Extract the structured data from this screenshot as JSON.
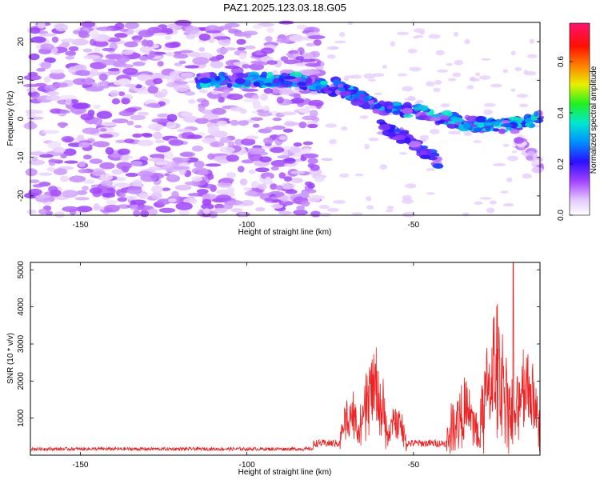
{
  "title": "PAZ1.2025.123.03.18.G05",
  "chart_data": [
    {
      "type": "heatmap",
      "title": "PAZ1.2025.123.03.18.G05",
      "xlabel": "Height of straight line (km)",
      "ylabel": "Frequency (Hz)",
      "xlim": [
        -165,
        -12
      ],
      "ylim": [
        -25,
        25
      ],
      "xticks": [
        "-150",
        "-100",
        "-50"
      ],
      "yticks": [
        "20",
        "10",
        "0",
        "-10",
        "-20"
      ],
      "colorbar": {
        "label": "Normalized spectral amplitude",
        "range": [
          0,
          0.75
        ],
        "ticks": [
          "0.0",
          "0.2",
          "0.4",
          "0.6"
        ],
        "colormap": "white-purple-blue-cyan-green-yellow-red-magenta"
      },
      "features": [
        {
          "name": "noise-band",
          "x_range": [
            -165,
            -78
          ],
          "freq_range": [
            -25,
            25
          ],
          "amplitude": 0.08
        },
        {
          "name": "main-trace",
          "points": [
            [
              -115,
              10
            ],
            [
              -100,
              10
            ],
            [
              -85,
              10
            ],
            [
              -75,
              8
            ],
            [
              -70,
              7
            ],
            [
              -60,
              3
            ],
            [
              -50,
              2
            ],
            [
              -45,
              1
            ],
            [
              -35,
              -1
            ],
            [
              -25,
              -2
            ],
            [
              -18,
              -1
            ],
            [
              -12,
              0
            ]
          ],
          "amplitude": 0.3
        },
        {
          "name": "upper-branch",
          "points": [
            [
              -74,
              9
            ],
            [
              -68,
              6
            ],
            [
              -62,
              4
            ]
          ],
          "amplitude": 0.25
        },
        {
          "name": "lower-branch",
          "points": [
            [
              -60,
              -2
            ],
            [
              -52,
              -5
            ],
            [
              -46,
              -9
            ],
            [
              -42,
              -12
            ]
          ],
          "amplitude": 0.2
        },
        {
          "name": "late-trace-tail",
          "points": [
            [
              -20,
              -4
            ],
            [
              -15,
              -9
            ],
            [
              -12,
              -13
            ]
          ],
          "amplitude": 0.1
        }
      ]
    },
    {
      "type": "line",
      "xlabel": "Height of straight line (km)",
      "ylabel": "SNR (10 * v/v)",
      "xlim": [
        -165,
        -12
      ],
      "ylim": [
        0,
        5200
      ],
      "xticks": [
        "-150",
        "-100",
        "-50"
      ],
      "yticks": [
        "5000",
        "4000",
        "3000",
        "2000",
        "1000"
      ],
      "color": "#ee2222",
      "segments": [
        {
          "x_range": [
            -165,
            -80
          ],
          "baseline": 150,
          "noise": 90
        },
        {
          "x_range": [
            -80,
            -72
          ],
          "baseline": 280,
          "noise": 200
        },
        {
          "x_range": [
            -72,
            -66
          ],
          "peak": 1500,
          "noise": 500
        },
        {
          "x_range": [
            -66,
            -58
          ],
          "peak": 2400,
          "noise": 700
        },
        {
          "x_range": [
            -58,
            -52
          ],
          "peak": 1200,
          "noise": 500
        },
        {
          "x_range": [
            -52,
            -40
          ],
          "baseline": 280,
          "noise": 200
        },
        {
          "x_range": [
            -40,
            -30
          ],
          "peak": 1500,
          "noise": 900
        },
        {
          "x_range": [
            -30,
            -20
          ],
          "peak": 3000,
          "noise": 1500
        },
        {
          "x_range": [
            -20,
            -12
          ],
          "peak": 2600,
          "noise": 700
        }
      ],
      "max_value": 5200,
      "max_at_x": -20
    }
  ]
}
